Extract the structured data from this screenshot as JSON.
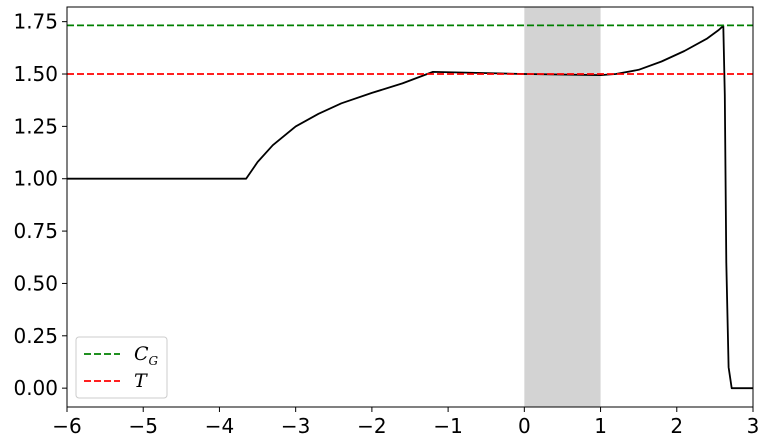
{
  "chart_data": {
    "type": "line",
    "title": "",
    "xlabel": "",
    "ylabel": "",
    "xlim": [
      -6,
      3
    ],
    "ylim": [
      -0.09,
      1.82
    ],
    "grid": false,
    "legend_position": "lower-left",
    "x_ticks": [
      -6,
      -5,
      -4,
      -3,
      -2,
      -1,
      0,
      1,
      2,
      3
    ],
    "x_tick_labels": [
      "−6",
      "−5",
      "−4",
      "−3",
      "−2",
      "−1",
      "0",
      "1",
      "2",
      "3"
    ],
    "y_ticks": [
      0.0,
      0.25,
      0.5,
      0.75,
      1.0,
      1.25,
      1.5,
      1.75
    ],
    "y_tick_labels": [
      "0.00",
      "0.25",
      "0.50",
      "0.75",
      "1.00",
      "1.25",
      "1.50",
      "1.75"
    ],
    "shaded_region": {
      "x": [
        0,
        1
      ],
      "color": "#d3d3d3"
    },
    "series": [
      {
        "style": "solid",
        "color": "#000000",
        "x": [
          -6.0,
          -3.65,
          -3.5,
          -3.3,
          -3.0,
          -2.7,
          -2.4,
          -2.0,
          -1.6,
          -1.2,
          0.0,
          1.0,
          1.2,
          1.5,
          1.8,
          2.1,
          2.4,
          2.55,
          2.61,
          2.63,
          2.65,
          2.68,
          2.72,
          3.0
        ],
        "y": [
          1.0,
          1.0,
          1.08,
          1.16,
          1.25,
          1.31,
          1.36,
          1.41,
          1.455,
          1.51,
          1.5,
          1.495,
          1.5,
          1.52,
          1.56,
          1.61,
          1.67,
          1.71,
          1.73,
          1.4,
          0.6,
          0.1,
          0.0,
          0.0
        ]
      },
      {
        "name": "C_G",
        "style": "dashed",
        "color": "#008000",
        "x": [
          -6,
          3
        ],
        "y": [
          1.732,
          1.732
        ]
      },
      {
        "name": "T",
        "style": "dashed",
        "color": "#ff0000",
        "x": [
          -6,
          3
        ],
        "y": [
          1.5,
          1.5
        ]
      }
    ],
    "legend": [
      {
        "main": "C",
        "sub": "G",
        "color": "#008000"
      },
      {
        "main": "T",
        "sub": "",
        "color": "#ff0000"
      }
    ]
  }
}
